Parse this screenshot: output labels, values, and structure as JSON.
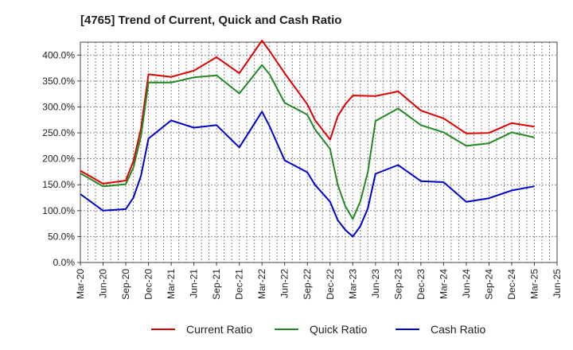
{
  "chart_data": {
    "type": "line",
    "title": "[4765]  Trend of Current, Quick and Cash Ratio",
    "xlabel": "",
    "ylabel": "",
    "ylim": [
      0,
      425
    ],
    "yticks": [
      0,
      50,
      100,
      150,
      200,
      250,
      300,
      350,
      400
    ],
    "ytick_labels": [
      "0.0%",
      "50.0%",
      "100.0%",
      "150.0%",
      "200.0%",
      "250.0%",
      "300.0%",
      "350.0%",
      "400.0%"
    ],
    "x_range_months": [
      0,
      63
    ],
    "xticks": [
      0,
      3,
      6,
      9,
      12,
      15,
      18,
      21,
      24,
      27,
      30,
      33,
      36,
      39,
      42,
      45,
      48,
      51,
      54,
      57,
      60,
      63
    ],
    "xtick_labels": [
      "Mar-20",
      "Jun-20",
      "Sep-20",
      "Dec-20",
      "Mar-21",
      "Jun-21",
      "Sep-21",
      "Dec-21",
      "Mar-22",
      "Jun-22",
      "Sep-22",
      "Dec-22",
      "Mar-23",
      "Jun-23",
      "Sep-23",
      "Dec-23",
      "Mar-24",
      "Jun-24",
      "Sep-24",
      "Dec-24",
      "Mar-25",
      "Jun-25"
    ],
    "grid": true,
    "legend_position": "bottom",
    "series": [
      {
        "name": "Current Ratio",
        "color": "#dd0000",
        "points": [
          [
            0,
            177
          ],
          [
            3,
            152
          ],
          [
            6,
            158
          ],
          [
            7,
            195
          ],
          [
            8,
            258
          ],
          [
            9,
            363
          ],
          [
            12,
            358
          ],
          [
            15,
            370
          ],
          [
            18,
            396
          ],
          [
            21,
            365
          ],
          [
            24,
            428
          ],
          [
            25,
            408
          ],
          [
            27,
            365
          ],
          [
            30,
            305
          ],
          [
            31,
            275
          ],
          [
            33,
            237
          ],
          [
            34,
            282
          ],
          [
            35,
            305
          ],
          [
            36,
            322
          ],
          [
            39,
            321
          ],
          [
            42,
            330
          ],
          [
            45,
            293
          ],
          [
            48,
            278
          ],
          [
            51,
            249
          ],
          [
            54,
            250
          ],
          [
            57,
            269
          ],
          [
            60,
            262
          ]
        ]
      },
      {
        "name": "Quick Ratio",
        "color": "#228822",
        "points": [
          [
            0,
            172
          ],
          [
            3,
            147
          ],
          [
            6,
            151
          ],
          [
            7,
            183
          ],
          [
            8,
            243
          ],
          [
            9,
            347
          ],
          [
            12,
            347
          ],
          [
            15,
            357
          ],
          [
            18,
            361
          ],
          [
            21,
            326
          ],
          [
            24,
            381
          ],
          [
            25,
            363
          ],
          [
            27,
            308
          ],
          [
            30,
            285
          ],
          [
            31,
            257
          ],
          [
            33,
            219
          ],
          [
            34,
            150
          ],
          [
            35,
            109
          ],
          [
            36,
            84
          ],
          [
            37,
            118
          ],
          [
            38,
            175
          ],
          [
            39,
            273
          ],
          [
            42,
            297
          ],
          [
            45,
            265
          ],
          [
            48,
            251
          ],
          [
            51,
            225
          ],
          [
            54,
            230
          ],
          [
            57,
            251
          ],
          [
            60,
            241
          ]
        ]
      },
      {
        "name": "Cash Ratio",
        "color": "#0000cc",
        "points": [
          [
            0,
            132
          ],
          [
            3,
            100
          ],
          [
            6,
            103
          ],
          [
            7,
            125
          ],
          [
            8,
            167
          ],
          [
            9,
            239
          ],
          [
            12,
            274
          ],
          [
            15,
            260
          ],
          [
            18,
            265
          ],
          [
            21,
            222
          ],
          [
            24,
            291
          ],
          [
            25,
            263
          ],
          [
            27,
            197
          ],
          [
            30,
            174
          ],
          [
            31,
            150
          ],
          [
            33,
            117
          ],
          [
            34,
            82
          ],
          [
            35,
            63
          ],
          [
            36,
            50
          ],
          [
            37,
            70
          ],
          [
            38,
            105
          ],
          [
            39,
            171
          ],
          [
            42,
            188
          ],
          [
            45,
            157
          ],
          [
            48,
            155
          ],
          [
            51,
            117
          ],
          [
            54,
            124
          ],
          [
            57,
            139
          ],
          [
            60,
            147
          ]
        ]
      }
    ]
  }
}
